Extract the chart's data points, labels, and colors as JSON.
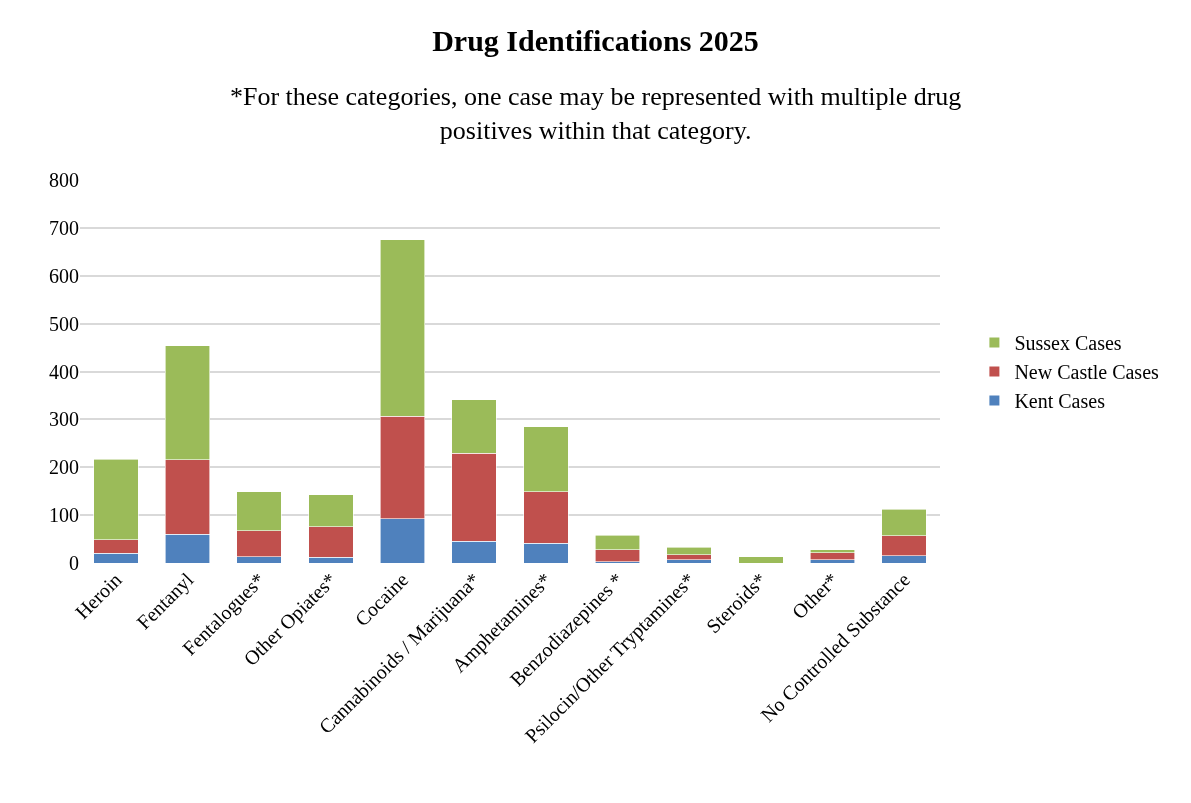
{
  "chart_data": {
    "type": "bar",
    "stacked": true,
    "title": "Drug Identifications 2025",
    "subtitle": "*For these categories, one case may be represented with multiple drug positives within that category.",
    "categories": [
      "Heroin",
      "Fentanyl",
      "Fentalogues*",
      "Other Opiates*",
      "Cocaine",
      "Cannabinoids / Marijuana*",
      "Amphetamines*",
      "Benzodiazepines *",
      "Psilocin/Other Tryptamines*",
      "Steroids*",
      "Other*",
      "No Controlled Substance"
    ],
    "series": [
      {
        "name": "Kent Cases",
        "color": "#4f81bd",
        "values": [
          20,
          60,
          13,
          12,
          92,
          45,
          41,
          3,
          7,
          0,
          7,
          15
        ]
      },
      {
        "name": "New Castle Cases",
        "color": "#c0504d",
        "values": [
          29,
          156,
          54,
          64,
          215,
          184,
          108,
          25,
          10,
          0,
          14,
          42
        ]
      },
      {
        "name": "Sussex Cases",
        "color": "#9bbb59",
        "values": [
          168,
          238,
          82,
          67,
          368,
          112,
          136,
          30,
          16,
          13,
          7,
          55
        ]
      }
    ],
    "ylim": [
      0,
      800
    ],
    "yticks": [
      0,
      100,
      200,
      300,
      400,
      500,
      600,
      700,
      800
    ],
    "grid": "y",
    "legend": "right"
  }
}
